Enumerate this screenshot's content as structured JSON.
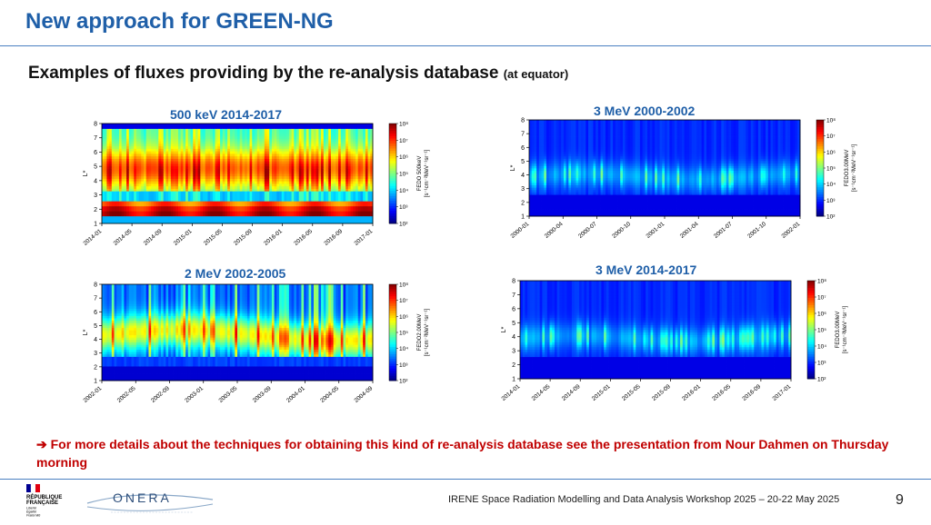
{
  "slide": {
    "title": "New approach for GREEN-NG",
    "subtitle": "Examples of fluxes providing by the re-analysis database",
    "subtitle_note": "(at equator)",
    "note_arrow": "➔",
    "note": "For more details about the techniques for obtaining this kind of re-analysis database see the presentation from Nour Dahmen on Thursday morning",
    "footer": "IRENE Space Radiation Modelling and Data Analysis Workshop 2025 – 20-22 May 2025",
    "page_number": "9",
    "logo_rf": [
      "RÉPUBLIQUE",
      "FRANÇAISE",
      "Liberté",
      "Égalité",
      "Fraternité"
    ],
    "logo_onera": "ONERA"
  },
  "colors": {
    "title": "#1f5fa8",
    "note": "#c00000",
    "rule": "#4a7fc0"
  },
  "chart_data": [
    {
      "type": "heatmap",
      "title": "500 keV 2014-2017",
      "ylabel": "L*",
      "ylim": [
        1,
        8
      ],
      "yticks": [
        "1",
        "2",
        "3",
        "4",
        "5",
        "6",
        "7",
        "8"
      ],
      "xticks": [
        "2014-01",
        "2014-05",
        "2014-09",
        "2015-01",
        "2015-05",
        "2015-09",
        "2016-01",
        "2016-05",
        "2016-09",
        "2017-01"
      ],
      "colorbar_label": "FEDO 500keV",
      "colorbar_unit": "[s⁻¹cm⁻²MeV⁻¹sr⁻¹]",
      "colorbar_ticks": [
        "10⁸",
        "10⁷",
        "10⁶",
        "10⁵",
        "10⁴",
        "10³",
        "10²"
      ],
      "colorscale": "jet",
      "profile": "lowE"
    },
    {
      "type": "heatmap",
      "title": "3 MeV 2000-2002",
      "ylabel": "L*",
      "ylim": [
        1,
        8
      ],
      "yticks": [
        "1",
        "2",
        "3",
        "4",
        "5",
        "6",
        "7",
        "8"
      ],
      "xticks": [
        "2000-01",
        "2000-04",
        "2000-07",
        "2000-10",
        "2001-01",
        "2001-04",
        "2001-07",
        "2001-10",
        "2002-01"
      ],
      "colorbar_label": "FEDO3.00MeV",
      "colorbar_unit": "[s⁻¹cm⁻²MeV⁻¹sr⁻¹]",
      "colorbar_ticks": [
        "10⁸",
        "10⁷",
        "10⁶",
        "10⁵",
        "10⁴",
        "10³",
        "10²"
      ],
      "colorscale": "jet",
      "profile": "highE"
    },
    {
      "type": "heatmap",
      "title": "2 MeV 2002-2005",
      "ylabel": "L*",
      "ylim": [
        1,
        8
      ],
      "yticks": [
        "1",
        "2",
        "3",
        "4",
        "5",
        "6",
        "7",
        "8"
      ],
      "xticks": [
        "2002-01",
        "2002-05",
        "2002-09",
        "2003-01",
        "2003-05",
        "2003-09",
        "2004-01",
        "2004-05",
        "2004-09"
      ],
      "colorbar_label": "FEDO2.00MeV",
      "colorbar_unit": "[s⁻¹cm⁻²MeV⁻¹sr⁻¹]",
      "colorbar_ticks": [
        "10⁸",
        "10⁷",
        "10⁶",
        "10⁵",
        "10⁴",
        "10³",
        "10²"
      ],
      "colorscale": "jet",
      "profile": "midE"
    },
    {
      "type": "heatmap",
      "title": "3 MeV 2014-2017",
      "ylabel": "L*",
      "ylim": [
        1,
        8
      ],
      "yticks": [
        "1",
        "2",
        "3",
        "4",
        "5",
        "6",
        "7",
        "8"
      ],
      "xticks": [
        "2014-01",
        "2014-05",
        "2014-09",
        "2015-01",
        "2015-05",
        "2015-09",
        "2016-01",
        "2016-05",
        "2016-09",
        "2017-01"
      ],
      "colorbar_label": "FEDO3.00MeV",
      "colorbar_unit": "[s⁻¹cm⁻²MeV⁻¹sr⁻¹]",
      "colorbar_ticks": [
        "10⁸",
        "10⁷",
        "10⁶",
        "10⁵",
        "10⁴",
        "10³",
        "10²"
      ],
      "colorscale": "jet",
      "profile": "highE2"
    }
  ]
}
